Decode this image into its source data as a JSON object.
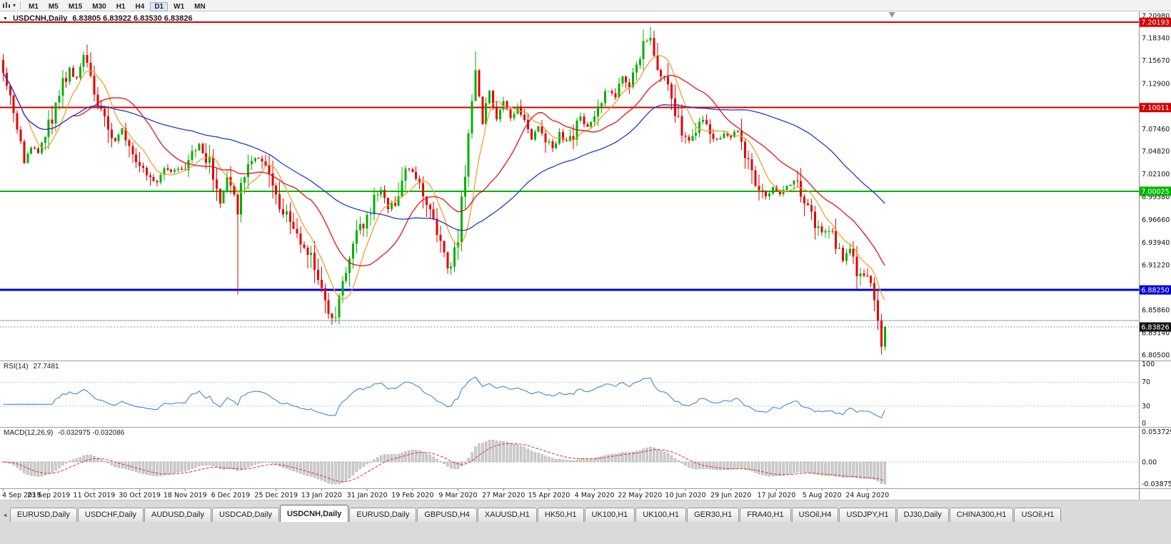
{
  "toolbar": {
    "timeframes": [
      "M1",
      "M5",
      "M15",
      "M30",
      "H1",
      "H4",
      "D1",
      "W1",
      "MN"
    ],
    "active_timeframe": "D1"
  },
  "chart": {
    "symbol_title": "USDCNH,Daily",
    "ohlc_text": "6.83805 6.83922 6.83530 6.83826",
    "open": "6.83805",
    "high": "6.83922",
    "low": "6.83530",
    "close": "6.83826",
    "axis_range": {
      "top": 7.2098,
      "bottom": 6.805
    },
    "price_scale_labels": [
      {
        "text": "7.20980",
        "value": 7.2098
      },
      {
        "text": "7.18340",
        "value": 7.1834
      },
      {
        "text": "7.15670",
        "value": 7.1567
      },
      {
        "text": "7.12900",
        "value": 7.129
      },
      {
        "text": "7.07460",
        "value": 7.0746
      },
      {
        "text": "7.04820",
        "value": 7.0482
      },
      {
        "text": "7.02100",
        "value": 7.021
      },
      {
        "text": "6.99380",
        "value": 6.9938
      },
      {
        "text": "6.96660",
        "value": 6.9666
      },
      {
        "text": "6.93940",
        "value": 6.9394
      },
      {
        "text": "6.91220",
        "value": 6.9122
      },
      {
        "text": "6.85860",
        "value": 6.8586
      },
      {
        "text": "6.83140",
        "value": 6.8314
      },
      {
        "text": "6.80500",
        "value": 6.805
      }
    ],
    "levels": [
      {
        "value": 7.20193,
        "label": "7.20193",
        "color": "#d40000",
        "width": 2,
        "badge": true
      },
      {
        "value": 7.10011,
        "label": "7.10011",
        "color": "#d40000",
        "width": 2,
        "badge": true
      },
      {
        "value": 7.00025,
        "label": "7.00025",
        "color": "#00b400",
        "width": 2,
        "badge": true
      },
      {
        "value": 6.8825,
        "label": "6.88250",
        "color": "#0000dc",
        "width": 3,
        "badge": true
      },
      {
        "value": 6.846,
        "label": "",
        "color": "#9a9a9a",
        "width": 1,
        "badge": false
      }
    ],
    "current_price": {
      "value": 6.83826,
      "label": "6.83826",
      "color": "#141414"
    },
    "date_labels": [
      "4 Sep 2019",
      "23 Sep 2019",
      "11 Oct 2019",
      "30 Oct 2019",
      "18 Nov 2019",
      "6 Dec 2019",
      "25 Dec 2019",
      "13 Jan 2020",
      "31 Jan 2020",
      "19 Feb 2020",
      "9 Mar 2020",
      "27 Mar 2020",
      "15 Apr 2020",
      "4 May 2020",
      "22 May 2020",
      "10 Jun 2020",
      "29 Jun 2020",
      "17 Jul 2020",
      "5 Aug 2020",
      "24 Aug 2020"
    ],
    "days_per_label": 13
  },
  "chart_data": {
    "type": "candlestick",
    "symbol": "USDCNH",
    "timeframe": "Daily",
    "num_candles": 253,
    "last_close": 6.83826,
    "ylim": [
      6.805,
      7.2098
    ],
    "up_color": "#00b000",
    "down_color": "#e60000",
    "moving_averages": [
      {
        "name": "fast-ma",
        "period": 8,
        "color": "#f0a030"
      },
      {
        "name": "medium-ma",
        "period": 21,
        "color": "#e01414"
      },
      {
        "name": "slow-ma",
        "period": 55,
        "color": "#1e3cc8"
      }
    ],
    "price_path": [
      [
        0,
        7.152
      ],
      [
        2,
        7.118
      ],
      [
        4,
        7.065
      ],
      [
        6,
        7.038
      ],
      [
        8,
        7.052
      ],
      [
        10,
        7.042
      ],
      [
        13,
        7.078
      ],
      [
        15,
        7.1
      ],
      [
        17,
        7.128
      ],
      [
        19,
        7.148
      ],
      [
        21,
        7.132
      ],
      [
        23,
        7.158
      ],
      [
        25,
        7.148
      ],
      [
        26,
        7.118
      ],
      [
        28,
        7.102
      ],
      [
        30,
        7.072
      ],
      [
        32,
        7.058
      ],
      [
        34,
        7.075
      ],
      [
        36,
        7.058
      ],
      [
        38,
        7.042
      ],
      [
        40,
        7.03
      ],
      [
        42,
        7.018
      ],
      [
        44,
        7.012
      ],
      [
        46,
        7.028
      ],
      [
        48,
        7.022
      ],
      [
        50,
        7.03
      ],
      [
        52,
        7.028
      ],
      [
        54,
        7.042
      ],
      [
        56,
        7.055
      ],
      [
        58,
        7.04
      ],
      [
        60,
        7.022
      ],
      [
        62,
        6.985
      ],
      [
        64,
        7.015
      ],
      [
        66,
        6.995
      ],
      [
        67,
        6.975
      ],
      [
        68,
        7.01
      ],
      [
        70,
        7.035
      ],
      [
        73,
        7.043
      ],
      [
        76,
        7.02
      ],
      [
        78,
        6.995
      ],
      [
        80,
        6.978
      ],
      [
        82,
        6.962
      ],
      [
        84,
        6.942
      ],
      [
        86,
        6.938
      ],
      [
        88,
        6.918
      ],
      [
        90,
        6.898
      ],
      [
        92,
        6.868
      ],
      [
        94,
        6.848
      ],
      [
        96,
        6.868
      ],
      [
        98,
        6.908
      ],
      [
        100,
        6.932
      ],
      [
        102,
        6.958
      ],
      [
        104,
        6.972
      ],
      [
        106,
        6.988
      ],
      [
        108,
        7.002
      ],
      [
        110,
        6.982
      ],
      [
        112,
        6.99
      ],
      [
        114,
        7.018
      ],
      [
        116,
        7.028
      ],
      [
        118,
        7.022
      ],
      [
        120,
        6.998
      ],
      [
        122,
        6.978
      ],
      [
        124,
        6.95
      ],
      [
        126,
        6.922
      ],
      [
        128,
        6.902
      ],
      [
        130,
        6.948
      ],
      [
        132,
        7.022
      ],
      [
        134,
        7.098
      ],
      [
        135,
        7.148
      ],
      [
        136,
        7.112
      ],
      [
        137,
        7.082
      ],
      [
        139,
        7.122
      ],
      [
        141,
        7.082
      ],
      [
        143,
        7.108
      ],
      [
        145,
        7.088
      ],
      [
        147,
        7.102
      ],
      [
        149,
        7.078
      ],
      [
        151,
        7.062
      ],
      [
        153,
        7.078
      ],
      [
        155,
        7.062
      ],
      [
        157,
        7.052
      ],
      [
        159,
        7.068
      ],
      [
        161,
        7.058
      ],
      [
        163,
        7.072
      ],
      [
        165,
        7.088
      ],
      [
        167,
        7.078
      ],
      [
        169,
        7.092
      ],
      [
        171,
        7.108
      ],
      [
        173,
        7.122
      ],
      [
        175,
        7.112
      ],
      [
        177,
        7.135
      ],
      [
        179,
        7.128
      ],
      [
        181,
        7.148
      ],
      [
        183,
        7.172
      ],
      [
        185,
        7.188
      ],
      [
        186,
        7.168
      ],
      [
        188,
        7.138
      ],
      [
        190,
        7.118
      ],
      [
        192,
        7.092
      ],
      [
        194,
        7.075
      ],
      [
        196,
        7.062
      ],
      [
        198,
        7.078
      ],
      [
        200,
        7.088
      ],
      [
        202,
        7.072
      ],
      [
        204,
        7.06
      ],
      [
        206,
        7.07
      ],
      [
        208,
        7.064
      ],
      [
        210,
        7.072
      ],
      [
        212,
        7.048
      ],
      [
        214,
        7.022
      ],
      [
        216,
        7.002
      ],
      [
        218,
        6.992
      ],
      [
        220,
        7.006
      ],
      [
        222,
        6.996
      ],
      [
        224,
        7.006
      ],
      [
        226,
        7.016
      ],
      [
        228,
        6.996
      ],
      [
        230,
        6.976
      ],
      [
        232,
        6.962
      ],
      [
        234,
        6.952
      ],
      [
        236,
        6.956
      ],
      [
        238,
        6.936
      ],
      [
        240,
        6.921
      ],
      [
        242,
        6.926
      ],
      [
        244,
        6.906
      ],
      [
        246,
        6.896
      ],
      [
        248,
        6.886
      ],
      [
        249,
        6.872
      ],
      [
        250,
        6.845
      ],
      [
        251,
        6.818
      ],
      [
        252,
        6.838
      ]
    ],
    "spikes": [
      {
        "day": 67,
        "low": 6.877
      },
      {
        "day": 94,
        "low": 6.841
      },
      {
        "day": 135,
        "high": 7.167
      },
      {
        "day": 185,
        "high": 7.196
      },
      {
        "day": 251,
        "low": 6.8055
      }
    ]
  },
  "rsi_panel": {
    "name": "RSI(14)",
    "value": "27.7481",
    "period": 14,
    "scale": [
      "100",
      "70",
      "30",
      "0"
    ],
    "guides": [
      70,
      30
    ],
    "line_color": "#4a86c8"
  },
  "macd_panel": {
    "name": "MACD(12,26,9)",
    "values": "-0.032975 -0.032086",
    "fast": 12,
    "slow": 26,
    "signal": 9,
    "scale_top": "0.053729",
    "scale_zero": "0.00",
    "scale_bottom": "-0.038751",
    "range_top": 0.053729,
    "range_bottom": -0.038751,
    "hist_color": "#cdcdcd",
    "signal_color": "#e03232"
  },
  "tabs": {
    "items": [
      "EURUSD,Daily",
      "USDCHF,Daily",
      "AUDUSD,Daily",
      "USDCAD,Daily",
      "USDCNH,Daily",
      "EURUSD,Daily",
      "GBPUSD,H4",
      "XAUUSD,H1",
      "HK50,H1",
      "UK100,H1",
      "UK100,H1",
      "GER30,H1",
      "FRA40,H1",
      "USOil,H4",
      "USDJPY,H1",
      "DJ30,Daily",
      "CHINA300,H1",
      "USOil,H1"
    ],
    "active_index": 4
  }
}
